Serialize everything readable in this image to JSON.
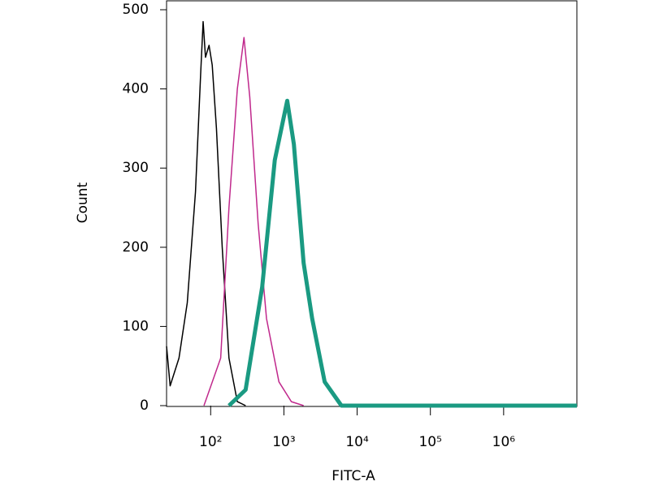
{
  "chart_data": {
    "type": "line",
    "xlabel": "FITC-A",
    "ylabel": "Count",
    "xscale": "log",
    "xlim": [
      25,
      10000000
    ],
    "ylim": [
      0,
      500
    ],
    "xticks": [
      {
        "value": 100,
        "label": "10²"
      },
      {
        "value": 1000,
        "label": "10³"
      },
      {
        "value": 10000,
        "label": "10⁴"
      },
      {
        "value": 100000,
        "label": "10⁵"
      },
      {
        "value": 1000000,
        "label": "10⁶"
      }
    ],
    "yticks": [
      0,
      100,
      200,
      300,
      400,
      500
    ],
    "series": [
      {
        "color": "#000000",
        "width": 1.5,
        "x": [
          25,
          28,
          37,
          48,
          62,
          73,
          79,
          85,
          95,
          105,
          120,
          144,
          178,
          231,
          300
        ],
        "values": [
          75,
          25,
          60,
          130,
          270,
          420,
          485,
          440,
          455,
          430,
          350,
          200,
          60,
          5,
          0
        ]
      },
      {
        "color": "#c0288c",
        "width": 1.5,
        "x": [
          81,
          137,
          178,
          231,
          285,
          342,
          445,
          578,
          855,
          1265,
          1860
        ],
        "values": [
          0,
          60,
          250,
          400,
          465,
          390,
          230,
          110,
          30,
          5,
          0
        ]
      },
      {
        "color": "#1a9a82",
        "width": 5,
        "x": [
          178,
          300,
          505,
          750,
          1110,
          1370,
          1860,
          2430,
          3600,
          6100,
          10000000
        ],
        "values": [
          0,
          20,
          150,
          310,
          385,
          330,
          180,
          110,
          30,
          0,
          0
        ]
      }
    ]
  }
}
